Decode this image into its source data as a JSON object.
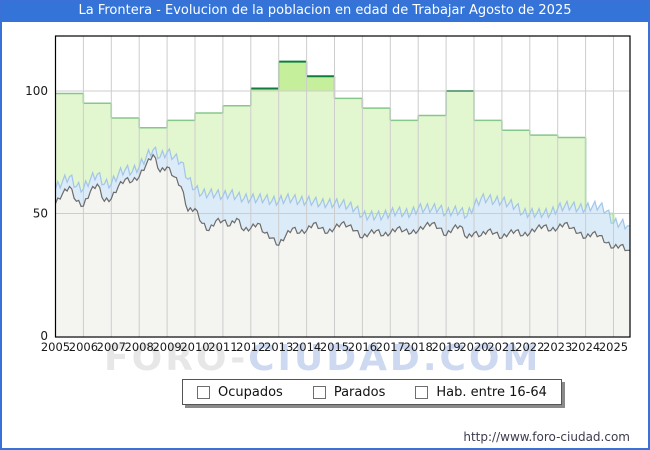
{
  "header": {
    "title": "La Frontera - Evolucion de la poblacion en edad de Trabajar Agosto de 2025",
    "bg_color": "#3473d8",
    "text_color": "#ffffff"
  },
  "watermark": {
    "part1": "FORO-",
    "part2": "CIUDAD.COM"
  },
  "legend": {
    "items": [
      {
        "label": "Ocupados",
        "fill": "#ebebeb",
        "border": "#6e6e6e"
      },
      {
        "label": "Parados",
        "fill": "#cfe1f5",
        "border": "#6e6e6e"
      },
      {
        "label": "Hab. entre 16-64",
        "fill": "#c9f09a",
        "border": "#6e6e6e"
      }
    ]
  },
  "footer": {
    "url": "http://www.foro-ciudad.com"
  },
  "chart_data": {
    "type": "area",
    "title": "La Frontera - Evolucion de la poblacion en edad de Trabajar Agosto de 2025",
    "xlabel": "",
    "ylabel": "",
    "x_tick_labels": [
      "2005",
      "2006",
      "2007",
      "2008",
      "2009",
      "2010",
      "2011",
      "2012",
      "2013",
      "2014",
      "2015",
      "2016",
      "2017",
      "2018",
      "2019",
      "2020",
      "2021",
      "2022",
      "2023",
      "2024",
      "2025"
    ],
    "y_ticks": [
      0,
      50,
      100
    ],
    "y_gridlines": [
      50,
      100
    ],
    "ylim": [
      0,
      122
    ],
    "x_range_years": [
      2005.0,
      2025.58
    ],
    "legend_position": "bottom",
    "grid": true,
    "series": [
      {
        "name": "Ocupados",
        "kind": "stacked-area-base",
        "x_start": 2005.0,
        "x_step_years": 0.25,
        "values": [
          54,
          58,
          61,
          55,
          53,
          59,
          62,
          55,
          56,
          61,
          64,
          63,
          65,
          70,
          74,
          67,
          69,
          65,
          61,
          51,
          52,
          46,
          43,
          47,
          47,
          45,
          48,
          43,
          44,
          46,
          42,
          40,
          37,
          41,
          44,
          42,
          43,
          46,
          44,
          42,
          44,
          46,
          45,
          43,
          40,
          42,
          43,
          41,
          42,
          44,
          43,
          42,
          43,
          45,
          46,
          44,
          41,
          44,
          45,
          40,
          42,
          41,
          43,
          42,
          40,
          42,
          43,
          41,
          42,
          44,
          45,
          43,
          44,
          46,
          44,
          42,
          40,
          42,
          41,
          38,
          36,
          37,
          35
        ]
      },
      {
        "name": "Parados",
        "kind": "stacked-area-on-ocupados",
        "x_start": 2005.0,
        "x_step_years": 0.25,
        "values": [
          6,
          5,
          4,
          6,
          7,
          5,
          4,
          7,
          6,
          5,
          4,
          4,
          4,
          3,
          2,
          6,
          6,
          8,
          10,
          13,
          8,
          12,
          15,
          11,
          10,
          13,
          9,
          13,
          12,
          10,
          14,
          15,
          18,
          15,
          12,
          13,
          12,
          9,
          10,
          12,
          10,
          8,
          8,
          9,
          9,
          7,
          6,
          8,
          8,
          7,
          7,
          8,
          9,
          7,
          6,
          8,
          9,
          7,
          6,
          9,
          11,
          15,
          13,
          13,
          15,
          12,
          10,
          9,
          8,
          6,
          5,
          7,
          8,
          7,
          9,
          10,
          12,
          11,
          12,
          13,
          10,
          9,
          10
        ]
      },
      {
        "name": "Hab. entre 16-64",
        "kind": "year-step-area",
        "years": [
          2005,
          2006,
          2007,
          2008,
          2009,
          2010,
          2011,
          2012,
          2013,
          2014,
          2015,
          2016,
          2017,
          2018,
          2019,
          2020,
          2021,
          2022,
          2023,
          2024,
          2025
        ],
        "values": [
          99,
          95,
          89,
          85,
          88,
          91,
          94,
          101,
          112,
          106,
          97,
          93,
          88,
          90,
          100,
          88,
          84,
          82,
          81,
          50,
          44
        ]
      }
    ],
    "colors": {
      "hab_fill": "#e2f6d0",
      "hab_fill_above_100": "#c6ef9b",
      "hab_line": "#85c88a",
      "hab_line_high": "#0f7d3e",
      "parados_fill": "#dcebf8",
      "parados_line": "#a2c5e8",
      "ocupados_fill": "#f4f4f1",
      "ocupados_line": "#6c6c6c",
      "gridline": "#cdcdcd",
      "plot_border": "#000000",
      "tick_text": "#1a1a1a"
    }
  }
}
